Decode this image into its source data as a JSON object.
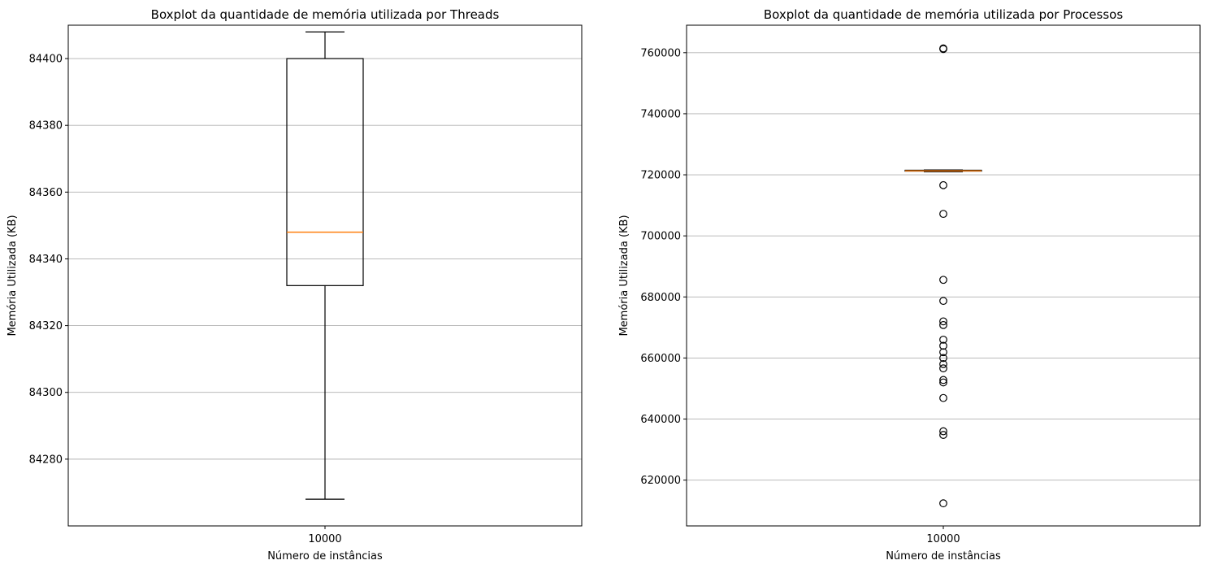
{
  "chart_data": [
    {
      "type": "box",
      "title": "Boxplot da quantidade de memória utilizada por Threads",
      "xlabel": "Número de instâncias",
      "ylabel": "Memória Utilizada (KB)",
      "categories": [
        "10000"
      ],
      "ylim": [
        84260,
        84410
      ],
      "yticks": [
        84280,
        84300,
        84320,
        84340,
        84360,
        84380,
        84400
      ],
      "ytick_labels": [
        "84280",
        "84300",
        "84320",
        "84340",
        "84360",
        "84380",
        "84400"
      ],
      "grid": "y",
      "box": {
        "whisker_low": 84268,
        "q1": 84332,
        "median": 84348,
        "q3": 84400,
        "whisker_high": 84408
      },
      "fliers": []
    },
    {
      "type": "box",
      "title": "Boxplot da quantidade de memória utilizada por Processos",
      "xlabel": "Número de instâncias",
      "ylabel": "Memória Utilizada (KB)",
      "categories": [
        "10000"
      ],
      "ylim": [
        605000,
        769000
      ],
      "yticks": [
        620000,
        640000,
        660000,
        680000,
        700000,
        720000,
        740000,
        760000
      ],
      "ytick_labels": [
        "620000",
        "640000",
        "660000",
        "680000",
        "700000",
        "720000",
        "740000",
        "760000"
      ],
      "grid": "y",
      "box": {
        "whisker_low": 721000,
        "q1": 721200,
        "median": 721300,
        "q3": 721500,
        "whisker_high": 721600
      },
      "fliers": [
        761400,
        761200,
        716600,
        707200,
        685600,
        678700,
        672000,
        670800,
        666000,
        664000,
        661900,
        660000,
        658000,
        656600,
        652800,
        652000,
        646900,
        636000,
        634800,
        612400
      ]
    }
  ]
}
